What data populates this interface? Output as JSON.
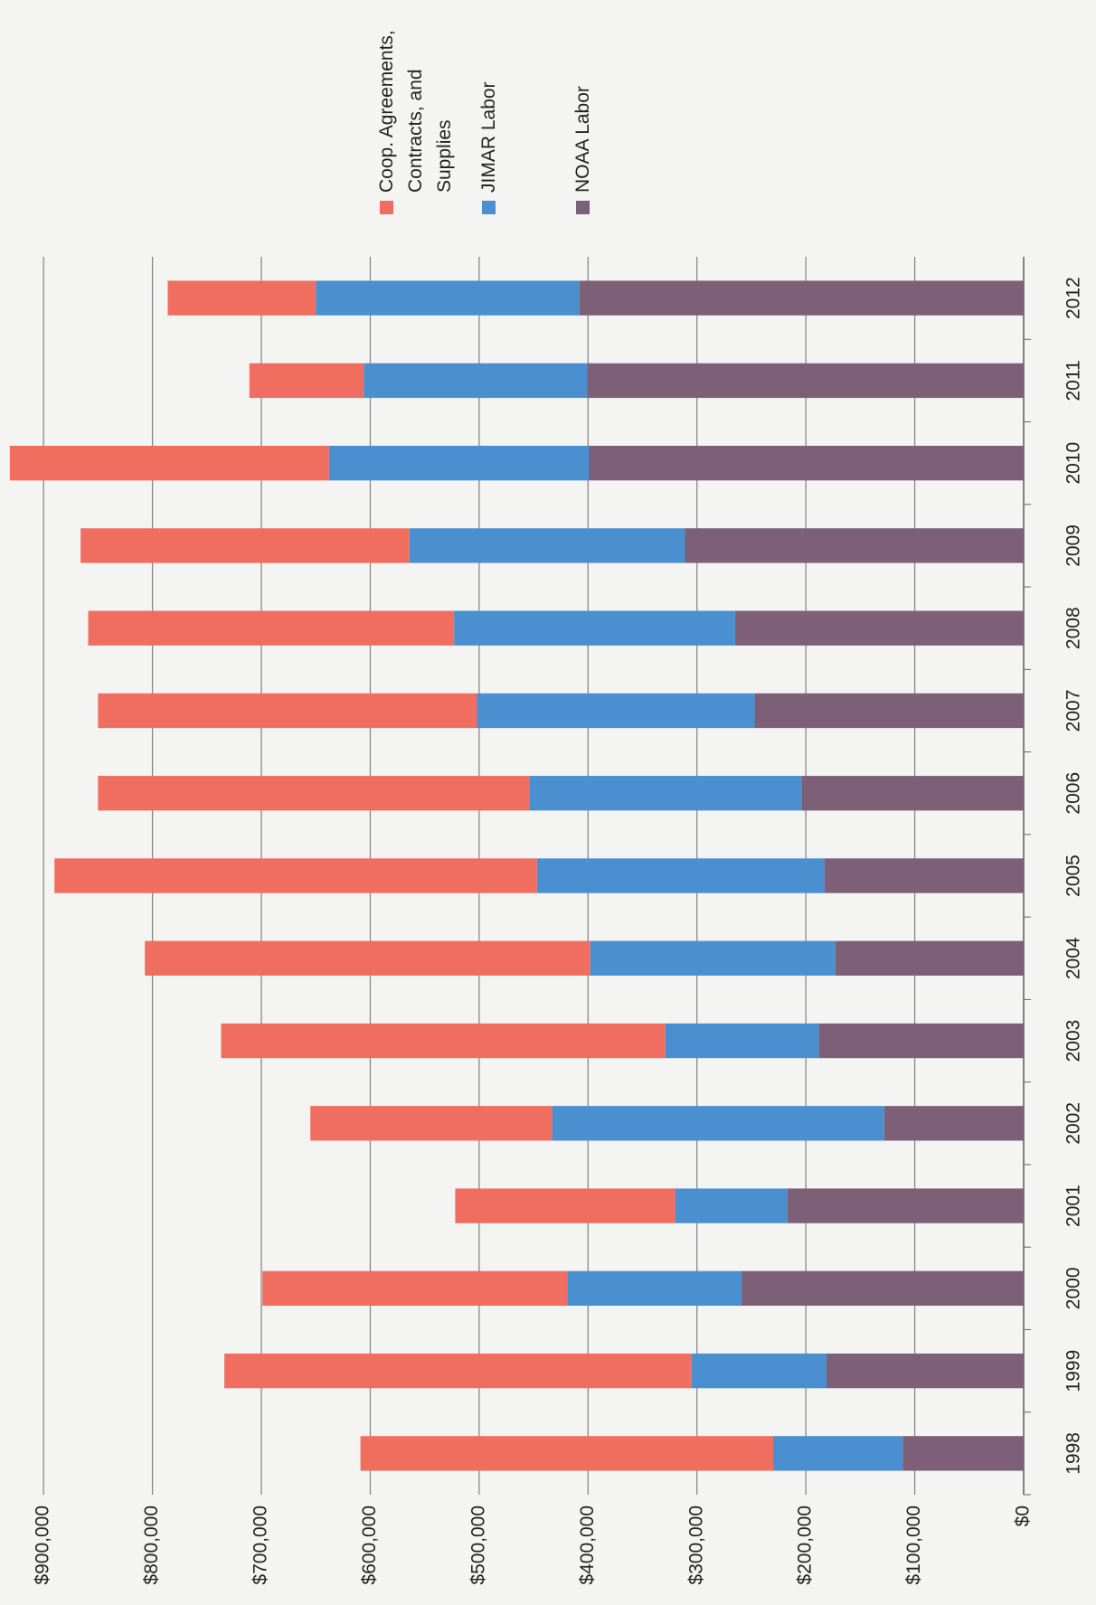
{
  "chart_data": {
    "type": "stacked_bar",
    "categories": [
      "1998",
      "1999",
      "2000",
      "2001",
      "2002",
      "2003",
      "2004",
      "2005",
      "2006",
      "2007",
      "2008",
      "2009",
      "2010",
      "2011",
      "2012"
    ],
    "series": [
      {
        "name": "NOAA Labor",
        "color": "#7d5f78",
        "values": [
          111000,
          181000,
          259000,
          217000,
          128000,
          188000,
          173000,
          183000,
          204000,
          247000,
          265000,
          311000,
          399000,
          401000,
          408000
        ]
      },
      {
        "name": "JIMAR Labor",
        "color": "#4a8fd0",
        "values": [
          119000,
          124000,
          160000,
          103000,
          305000,
          141000,
          225000,
          264000,
          250000,
          255000,
          258000,
          253000,
          239000,
          205000,
          242000
        ]
      },
      {
        "name": "Coop. Agreements, Contracts, and Supplies",
        "color": "#ef6e5f",
        "values": [
          379000,
          429000,
          280000,
          202000,
          222000,
          408000,
          409000,
          443000,
          396000,
          348000,
          336000,
          302000,
          293000,
          105000,
          136000
        ]
      }
    ],
    "ylim": [
      0,
      940000
    ],
    "yticks": [
      {
        "value": 0,
        "label": "$0"
      },
      {
        "value": 100000,
        "label": "$100,000"
      },
      {
        "value": 200000,
        "label": "$200,000"
      },
      {
        "value": 300000,
        "label": "$300,000"
      },
      {
        "value": 400000,
        "label": "$400,000"
      },
      {
        "value": 500000,
        "label": "$500,000"
      },
      {
        "value": 600000,
        "label": "$600,000"
      },
      {
        "value": 700000,
        "label": "$700,000"
      },
      {
        "value": 800000,
        "label": "$800,000"
      },
      {
        "value": 900000,
        "label": "$900,000"
      }
    ],
    "grid": true,
    "legend": "right"
  }
}
